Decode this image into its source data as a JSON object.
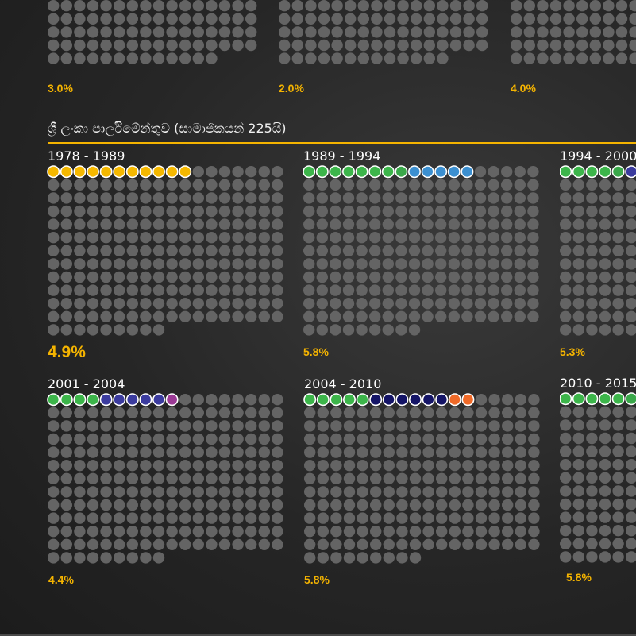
{
  "colors": {
    "seat_empty": "#646464",
    "percent_text": "#f5b400",
    "title_rule": "#f5b400"
  },
  "chart_title": "ශ්‍රී ලංකා පාර්ලිමේන්තුව (සාමාජිකයන් 225යි)",
  "chart_data": [
    {
      "type": "waffle",
      "partial": true,
      "label": "",
      "value": "3.0%",
      "cols": 16,
      "highlighted": []
    },
    {
      "type": "waffle",
      "partial": true,
      "label": "",
      "value": "2.0%",
      "cols": 16,
      "highlighted": []
    },
    {
      "type": "waffle",
      "partial": true,
      "label": "",
      "value": "4.0%",
      "cols": 16,
      "highlighted": []
    },
    {
      "type": "waffle",
      "label": "1978 - 1989",
      "value": "4.9%",
      "total_seats": 225,
      "cols": 18,
      "highlighted": [
        "#f5b800",
        "#f5b800",
        "#f5b800",
        "#f5b800",
        "#f5b800",
        "#f5b800",
        "#f5b800",
        "#f5b800",
        "#f5b800",
        "#f5b800",
        "#f5b800"
      ]
    },
    {
      "type": "waffle",
      "label": "1989 - 1994",
      "value": "5.8%",
      "total_seats": 225,
      "cols": 18,
      "highlighted": [
        "#3cb54a",
        "#3cb54a",
        "#3cb54a",
        "#3cb54a",
        "#3cb54a",
        "#3cb54a",
        "#3cb54a",
        "#3aa84a",
        "#3b8fd0",
        "#3b8fd0",
        "#3b8fd0",
        "#3b8fd0",
        "#3b8fd0"
      ]
    },
    {
      "type": "waffle",
      "label": "1994 - 2000",
      "value": "5.3%",
      "total_seats": 225,
      "cols": 18,
      "highlighted": [
        "#3cb54a",
        "#3cb54a",
        "#3cb54a",
        "#3cb54a",
        "#3aa84a",
        "#3b3b9e",
        "#3b3b9e",
        "#3b3b9e",
        "#3b3b9e",
        "#3b3b9e",
        "#3b3b9e",
        "#3b3b9e"
      ]
    },
    {
      "type": "waffle",
      "label": "2001 - 2004",
      "value": "4.4%",
      "total_seats": 225,
      "cols": 18,
      "highlighted": [
        "#3cb54a",
        "#3cb54a",
        "#3cb54a",
        "#3cb54a",
        "#3b3b9e",
        "#3b3b9e",
        "#3b3b9e",
        "#3b3b9e",
        "#3b3b9e",
        "#9c3a96"
      ]
    },
    {
      "type": "waffle",
      "label": "2004 - 2010",
      "value": "5.8%",
      "total_seats": 225,
      "cols": 18,
      "highlighted": [
        "#3cb54a",
        "#3cb54a",
        "#3cb54a",
        "#3cb54a",
        "#3cb54a",
        "#141466",
        "#141466",
        "#141466",
        "#141466",
        "#141466",
        "#141466",
        "#f06a28",
        "#f06a28"
      ]
    },
    {
      "type": "waffle",
      "label": "2010 - 2015",
      "value": "5.8%",
      "total_seats": 225,
      "cols": 18,
      "highlighted": [
        "#3cb54a",
        "#3cb54a",
        "#3cb54a",
        "#3cb54a",
        "#3cb54a",
        "#3aa84a",
        "#3aa84a",
        "#3aa84a",
        "#3aa84a",
        "#3aa84a",
        "#3aa84a",
        "#3aa84a",
        "#3aa84a"
      ]
    }
  ]
}
